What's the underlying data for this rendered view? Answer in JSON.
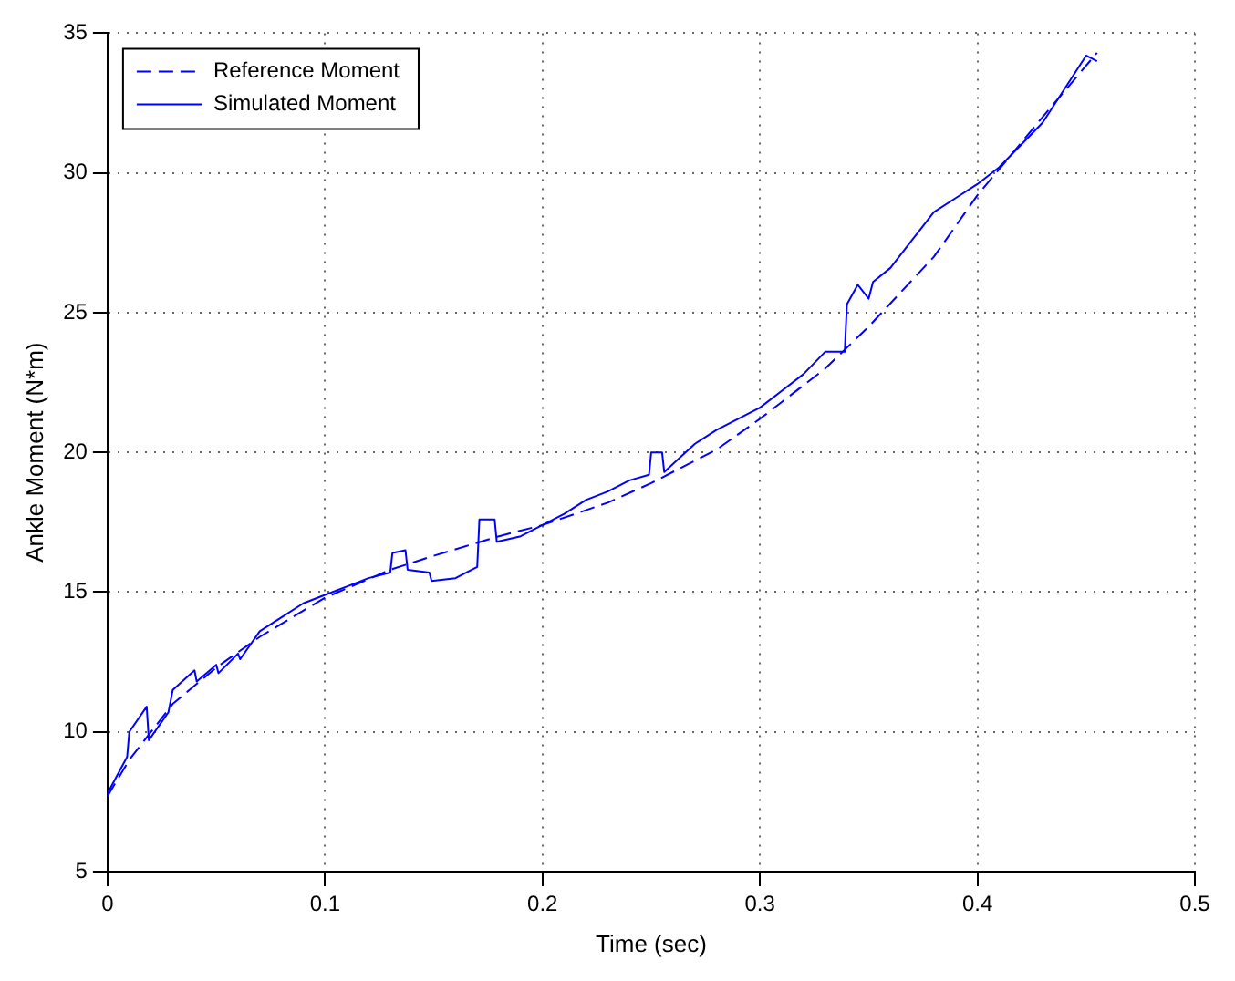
{
  "chart_data": {
    "type": "line",
    "xlabel": "Time (sec)",
    "ylabel": "Ankle Moment (N*m)",
    "xlim": [
      0,
      0.5
    ],
    "xticks": [
      0,
      0.1,
      0.2,
      0.3,
      0.4,
      0.5
    ],
    "ylim": [
      5,
      35
    ],
    "yticks": [
      5,
      10,
      15,
      20,
      25,
      30,
      35
    ],
    "grid": true,
    "legend": "top left",
    "marker": "none",
    "series": [
      {
        "name": "Reference Moment",
        "color": "#0000ff",
        "line_style": "dashed",
        "x": [
          0,
          0.01,
          0.02,
          0.03,
          0.05,
          0.07,
          0.1,
          0.13,
          0.15,
          0.18,
          0.2,
          0.23,
          0.25,
          0.28,
          0.3,
          0.33,
          0.35,
          0.38,
          0.4,
          0.43,
          0.455
        ],
        "values": [
          7.7,
          9.0,
          10.0,
          11.0,
          12.3,
          13.4,
          14.8,
          15.8,
          16.3,
          17.0,
          17.4,
          18.2,
          18.9,
          20.1,
          21.2,
          23.0,
          24.5,
          27.0,
          29.2,
          32.0,
          34.3
        ]
      },
      {
        "name": "Simulated Moment",
        "color": "#0000ff",
        "line_style": "solid",
        "x": [
          0,
          0.009,
          0.01,
          0.018,
          0.019,
          0.028,
          0.03,
          0.04,
          0.041,
          0.05,
          0.051,
          0.06,
          0.061,
          0.07,
          0.08,
          0.09,
          0.1,
          0.11,
          0.12,
          0.13,
          0.131,
          0.137,
          0.138,
          0.148,
          0.149,
          0.16,
          0.17,
          0.171,
          0.178,
          0.179,
          0.19,
          0.2,
          0.21,
          0.22,
          0.23,
          0.24,
          0.249,
          0.25,
          0.255,
          0.256,
          0.27,
          0.28,
          0.29,
          0.3,
          0.31,
          0.32,
          0.33,
          0.339,
          0.34,
          0.345,
          0.35,
          0.352,
          0.36,
          0.37,
          0.38,
          0.39,
          0.4,
          0.41,
          0.42,
          0.43,
          0.44,
          0.45,
          0.455
        ],
        "values": [
          7.8,
          9.1,
          10.0,
          10.9,
          9.7,
          10.7,
          11.5,
          12.2,
          11.8,
          12.4,
          12.1,
          12.8,
          12.6,
          13.6,
          14.1,
          14.6,
          14.9,
          15.2,
          15.5,
          15.7,
          16.4,
          16.5,
          15.8,
          15.7,
          15.4,
          15.5,
          15.9,
          17.6,
          17.6,
          16.8,
          17.0,
          17.4,
          17.8,
          18.3,
          18.6,
          19.0,
          19.2,
          20.0,
          20.0,
          19.3,
          20.3,
          20.8,
          21.2,
          21.6,
          22.2,
          22.8,
          23.6,
          23.6,
          25.3,
          26.0,
          25.5,
          26.1,
          26.6,
          27.6,
          28.6,
          29.1,
          29.6,
          30.2,
          31.0,
          31.8,
          33.0,
          34.2,
          34.0
        ]
      }
    ]
  }
}
